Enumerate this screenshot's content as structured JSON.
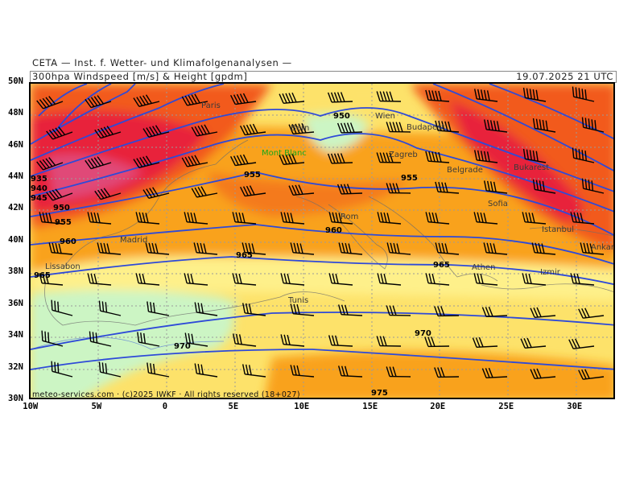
{
  "header": {
    "institute": "CETA — Inst. f. Wetter- und Klimafolgenanalysen —",
    "title": "300hpa Windspeed [m/s] & Height [gpdm]",
    "datetime": "19.07.2025 21 UTC"
  },
  "footer": "meteo-services.com · (c)2025 IWKF · All rights reserved (18+027)",
  "axes": {
    "y_ticks": [
      "50N",
      "48N",
      "46N",
      "44N",
      "42N",
      "40N",
      "38N",
      "36N",
      "34N",
      "32N",
      "30N"
    ],
    "x_ticks": [
      "10W",
      "5W",
      "0",
      "5E",
      "10E",
      "15E",
      "20E",
      "25E",
      "30E"
    ]
  },
  "cities": [
    {
      "name": "Paris"
    },
    {
      "name": "Bern"
    },
    {
      "name": "Wien"
    },
    {
      "name": "Budapest"
    },
    {
      "name": "Zagreb"
    },
    {
      "name": "Belgrade"
    },
    {
      "name": "Bukarest"
    },
    {
      "name": "Sofia"
    },
    {
      "name": "Rom"
    },
    {
      "name": "Madrid"
    },
    {
      "name": "Lissabon"
    },
    {
      "name": "Istanbul"
    },
    {
      "name": "Ankara"
    },
    {
      "name": "Athen"
    },
    {
      "name": "Izmir"
    },
    {
      "name": "Tunis"
    },
    {
      "name": "Mont Blanc"
    }
  ],
  "contour_labels": [
    "950",
    "955",
    "955",
    "960",
    "965",
    "965",
    "970",
    "970",
    "975",
    "955",
    "950",
    "945",
    "940",
    "935",
    "960",
    "965"
  ],
  "colors": {
    "strong_wind": "#e8203a",
    "high_wind": "#f25a1c",
    "mid_wind": "#f9a21a",
    "low_wind": "#fde26a",
    "calm": "#ccf5c4",
    "contour": "#2e4ad8"
  }
}
